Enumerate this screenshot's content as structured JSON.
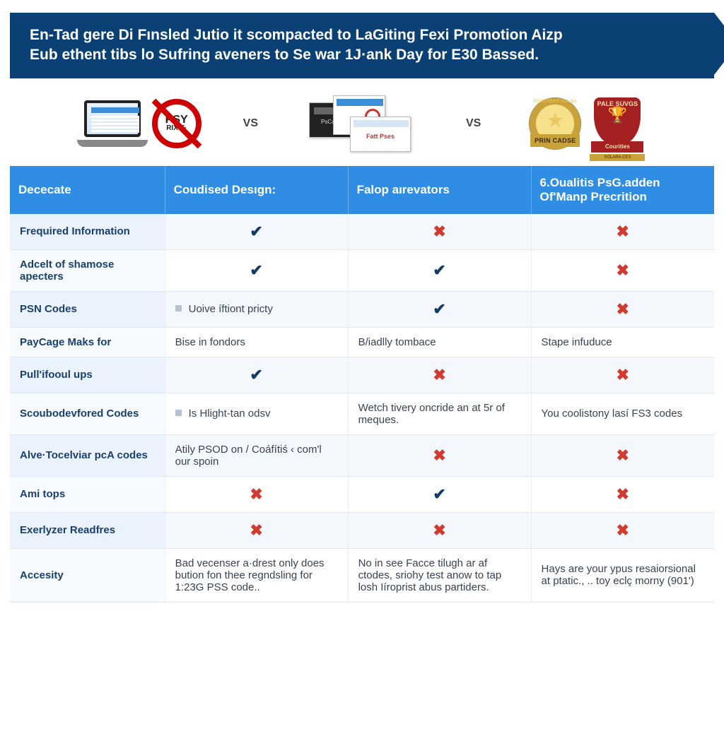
{
  "colors": {
    "banner_bg": "#0b4075",
    "banner_text": "#ffffff",
    "header_bg": "#2f8de4",
    "header_text": "#ffffff",
    "row_label_odd": "#eaf3fd",
    "row_label_even": "#f7fbff",
    "row_val_odd": "#f4f8fc",
    "row_val_even": "#ffffff",
    "border": "#e2e7ec",
    "label_text": "#193f6c",
    "body_text": "#374351",
    "check": "#123a66",
    "cross": "#d23a2f",
    "bullet": "#b9c2cc"
  },
  "banner": {
    "line1": "En-Tad gere Di Fınsled Jutio it scompacted to LaGiting Fexi Promotion Aizp",
    "line2": "Eub ethent tibs lo Sufring aveners to Se war 1J·ank Day for E30 Bassed."
  },
  "vs_label": "VS",
  "icons": {
    "col1": {
      "laptop": true,
      "no_sign_top": "PSY",
      "no_sign_bottom": "RIX T·"
    },
    "col2": {
      "stack": true
    },
    "col3": {
      "seal1_top": "REMERRAR HOLMA",
      "seal1_ribbon": "PRIN CADSE",
      "seal2_title": "PALE SUVGS",
      "seal2_ribbon": "Courities",
      "seal2_sub": "SOLARA CES"
    }
  },
  "table": {
    "headers": [
      "Dececate",
      "Coudised Desıgn:",
      "Falop aırevators",
      "6.Oualitis PsG.adden Of'Manp Precrition"
    ],
    "rows": [
      {
        "label": "Frequired Information",
        "c1": {
          "t": "check"
        },
        "c2": {
          "t": "cross"
        },
        "c3": {
          "t": "cross"
        }
      },
      {
        "label": "Adcelt of shamose apecters",
        "c1": {
          "t": "check"
        },
        "c2": {
          "t": "check"
        },
        "c3": {
          "t": "cross"
        }
      },
      {
        "label": "PSN Codes",
        "c1": {
          "t": "bullet",
          "text": "Uoive íftiont pricty"
        },
        "c2": {
          "t": "check"
        },
        "c3": {
          "t": "cross"
        }
      },
      {
        "label": "PayCage Maks for",
        "c1": {
          "t": "text",
          "text": "Bise in fondors"
        },
        "c2": {
          "t": "text",
          "text": "B/iadlly tombace"
        },
        "c3": {
          "t": "text",
          "text": "Stape infuduce"
        }
      },
      {
        "label": "Pull'ifooul ups",
        "c1": {
          "t": "check"
        },
        "c2": {
          "t": "cross"
        },
        "c3": {
          "t": "cross"
        }
      },
      {
        "label": "Scoubodevfored Codes",
        "c1": {
          "t": "bullet",
          "text": "Is Hlight-tan odsv"
        },
        "c2": {
          "t": "text",
          "text": "Wetch tivery oncride an at 5r of meques."
        },
        "c3": {
          "t": "text",
          "text": "You coolistony lasí FS3 codes"
        }
      },
      {
        "label": "Alve·Tocelviar pcA codes",
        "c1": {
          "t": "text",
          "text": "Atily PSOD on / Coáfítiś ‹ com'l our spoin"
        },
        "c2": {
          "t": "cross"
        },
        "c3": {
          "t": "cross"
        }
      },
      {
        "label": "Ami tops",
        "c1": {
          "t": "cross"
        },
        "c2": {
          "t": "check"
        },
        "c3": {
          "t": "cross"
        }
      },
      {
        "label": "Exerlyzer Readfres",
        "c1": {
          "t": "cross"
        },
        "c2": {
          "t": "cross"
        },
        "c3": {
          "t": "cross"
        }
      },
      {
        "label": "Accesity",
        "c1": {
          "t": "text",
          "text": "Bad vecenser a·drest only does bution fon thee regndsling for 1:23G PSS code.."
        },
        "c2": {
          "t": "text",
          "text": "No in see Facce tilugh ar af ctodes, sriohy test anow to tap losh Iíroprist abus partiders."
        },
        "c3": {
          "t": "text",
          "text": "Hays are your ypus resaiorsional at ptatic., .. toy eclç morny (901')"
        }
      }
    ]
  },
  "typography": {
    "banner_fontsize": 21,
    "header_fontsize": 17,
    "cell_fontsize": 15
  }
}
